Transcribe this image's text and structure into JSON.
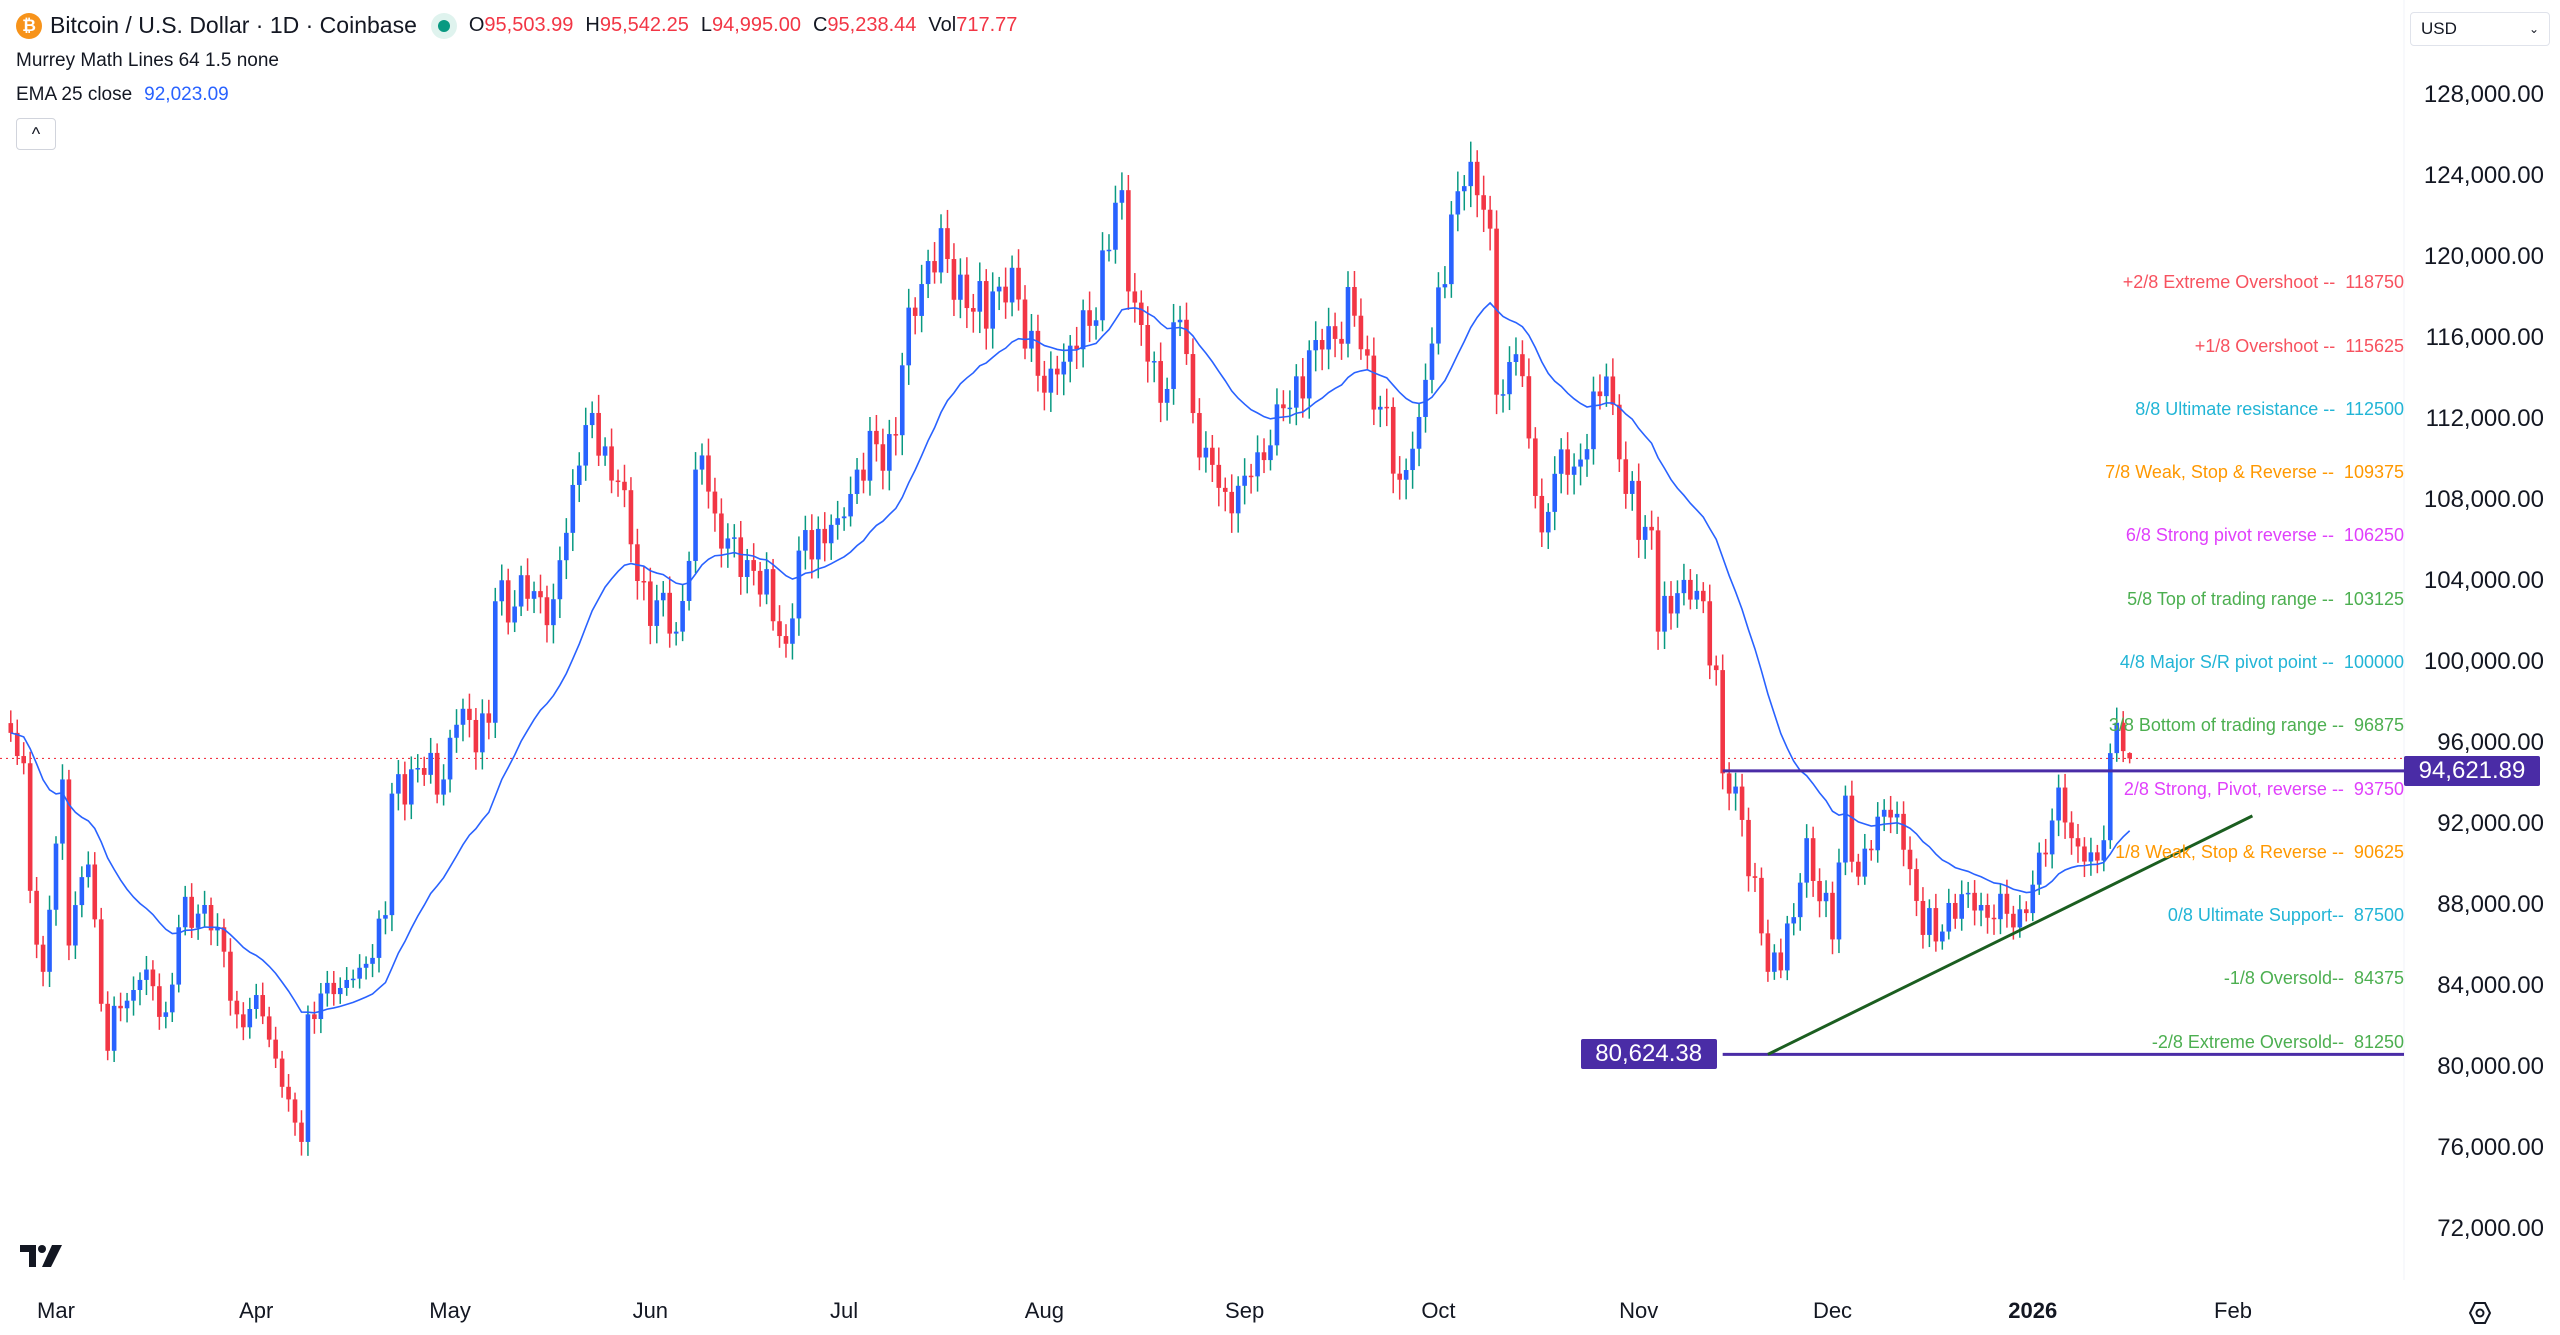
{
  "header": {
    "symbol_icon": "bitcoin-icon",
    "title": "Bitcoin / U.S. Dollar · 1D · Coinbase",
    "market_status": "open",
    "ohlc": [
      {
        "label": "O",
        "value": "95,503.99"
      },
      {
        "label": "H",
        "value": "95,542.25"
      },
      {
        "label": "L",
        "value": "94,995.00"
      },
      {
        "label": "C",
        "value": "95,238.44"
      },
      {
        "label": "Vol",
        "value": "717.77"
      }
    ]
  },
  "indicators": {
    "murrey": "Murrey Math Lines 64 1.5 none",
    "ema_label": "EMA 25 close",
    "ema_value": "92,023.09",
    "collapse_label": "^"
  },
  "currency": {
    "value": "USD"
  },
  "colors": {
    "up": "#2962ff",
    "up_wick": "#089981",
    "down": "#f23645",
    "ema": "#2962ff",
    "level": "#4a2ca6",
    "trendline": "#1b5e20"
  },
  "chart_data": {
    "type": "candlestick",
    "interval": "1D",
    "ylim": [
      72000,
      128000
    ],
    "y_ticks": [
      "128,000.00",
      "124,000.00",
      "120,000.00",
      "116,000.00",
      "112,000.00",
      "108,000.00",
      "104,000.00",
      "100,000.00",
      "96,000.00",
      "92,000.00",
      "88,000.00",
      "84,000.00",
      "80,000.00",
      "76,000.00",
      "72,000.00"
    ],
    "x_ticks": [
      {
        "date": "2025-03-01",
        "label": "Mar"
      },
      {
        "date": "2025-04-01",
        "label": "Apr"
      },
      {
        "date": "2025-05-01",
        "label": "May"
      },
      {
        "date": "2025-06-01",
        "label": "Jun"
      },
      {
        "date": "2025-07-01",
        "label": "Jul"
      },
      {
        "date": "2025-08-01",
        "label": "Aug"
      },
      {
        "date": "2025-09-01",
        "label": "Sep"
      },
      {
        "date": "2025-10-01",
        "label": "Oct"
      },
      {
        "date": "2025-11-01",
        "label": "Nov"
      },
      {
        "date": "2025-12-01",
        "label": "Dec"
      },
      {
        "date": "2026-01-01",
        "label": "2026",
        "bold": true
      },
      {
        "date": "2026-02-01",
        "label": "Feb"
      }
    ],
    "approx_closes": [
      [
        "2025-02-22",
        96500
      ],
      [
        "2025-02-24",
        95000
      ],
      [
        "2025-02-25",
        88700
      ],
      [
        "2025-02-27",
        84700
      ],
      [
        "2025-03-02",
        94200
      ],
      [
        "2025-03-03",
        86000
      ],
      [
        "2025-03-06",
        90000
      ],
      [
        "2025-03-09",
        80800
      ],
      [
        "2025-03-11",
        82900
      ],
      [
        "2025-03-14",
        84300
      ],
      [
        "2025-03-18",
        82700
      ],
      [
        "2025-03-20",
        86900
      ],
      [
        "2025-03-24",
        88000
      ],
      [
        "2025-03-26",
        86900
      ],
      [
        "2025-03-29",
        82600
      ],
      [
        "2025-04-02",
        82500
      ],
      [
        "2025-04-06",
        78400
      ],
      [
        "2025-04-08",
        76300
      ],
      [
        "2025-04-09",
        82600
      ],
      [
        "2025-04-13",
        83600
      ],
      [
        "2025-04-17",
        84900
      ],
      [
        "2025-04-21",
        87500
      ],
      [
        "2025-04-22",
        93500
      ],
      [
        "2025-04-25",
        94700
      ],
      [
        "2025-04-30",
        94200
      ],
      [
        "2025-05-02",
        96900
      ],
      [
        "2025-05-07",
        97000
      ],
      [
        "2025-05-08",
        103000
      ],
      [
        "2025-05-14",
        103500
      ],
      [
        "2025-05-17",
        103100
      ],
      [
        "2025-05-21",
        109700
      ],
      [
        "2025-05-22",
        111700
      ],
      [
        "2025-05-27",
        108900
      ],
      [
        "2025-05-30",
        104000
      ],
      [
        "2025-06-05",
        101500
      ],
      [
        "2025-06-09",
        110200
      ],
      [
        "2025-06-12",
        105600
      ],
      [
        "2025-06-17",
        104500
      ],
      [
        "2025-06-22",
        100900
      ],
      [
        "2025-06-24",
        105500
      ],
      [
        "2025-06-30",
        107100
      ],
      [
        "2025-07-03",
        109500
      ],
      [
        "2025-07-09",
        111200
      ],
      [
        "2025-07-11",
        117500
      ],
      [
        "2025-07-14",
        119800
      ],
      [
        "2025-07-17",
        119900
      ],
      [
        "2025-07-21",
        117300
      ],
      [
        "2025-07-24",
        118300
      ],
      [
        "2025-07-28",
        117900
      ],
      [
        "2025-08-01",
        113300
      ],
      [
        "2025-08-03",
        114200
      ],
      [
        "2025-08-08",
        116600
      ],
      [
        "2025-08-13",
        123300
      ],
      [
        "2025-08-14",
        118300
      ],
      [
        "2025-08-19",
        112800
      ],
      [
        "2025-08-22",
        116900
      ],
      [
        "2025-08-25",
        110100
      ],
      [
        "2025-08-29",
        108400
      ],
      [
        "2025-09-01",
        109200
      ],
      [
        "2025-09-05",
        110700
      ],
      [
        "2025-09-12",
        115900
      ],
      [
        "2025-09-18",
        117100
      ],
      [
        "2025-09-22",
        112600
      ],
      [
        "2025-09-25",
        109000
      ],
      [
        "2025-09-28",
        112100
      ],
      [
        "2025-10-01",
        118500
      ],
      [
        "2025-10-05",
        123500
      ],
      [
        "2025-10-06",
        124700
      ],
      [
        "2025-10-09",
        121400
      ],
      [
        "2025-10-10",
        113200
      ],
      [
        "2025-10-13",
        115200
      ],
      [
        "2025-10-16",
        108200
      ],
      [
        "2025-10-17",
        106400
      ],
      [
        "2025-10-20",
        110500
      ],
      [
        "2025-10-23",
        110000
      ],
      [
        "2025-10-27",
        114100
      ],
      [
        "2025-10-30",
        108300
      ],
      [
        "2025-11-03",
        106500
      ],
      [
        "2025-11-04",
        101500
      ],
      [
        "2025-11-07",
        103400
      ],
      [
        "2025-11-11",
        103000
      ],
      [
        "2025-11-13",
        99600
      ],
      [
        "2025-11-14",
        94500
      ],
      [
        "2025-11-17",
        92200
      ],
      [
        "2025-11-20",
        86600
      ],
      [
        "2025-11-21",
        84700
      ],
      [
        "2025-11-25",
        87400
      ],
      [
        "2025-11-27",
        91300
      ],
      [
        "2025-12-01",
        86300
      ],
      [
        "2025-12-03",
        93400
      ],
      [
        "2025-12-05",
        89400
      ],
      [
        "2025-12-09",
        92700
      ],
      [
        "2025-12-11",
        92500
      ],
      [
        "2025-12-14",
        88200
      ],
      [
        "2025-12-17",
        86200
      ],
      [
        "2025-12-19",
        88100
      ],
      [
        "2025-12-22",
        88600
      ],
      [
        "2025-12-26",
        87300
      ],
      [
        "2025-12-31",
        87600
      ],
      [
        "2026-01-03",
        90500
      ],
      [
        "2026-01-05",
        93800
      ],
      [
        "2026-01-07",
        91300
      ],
      [
        "2026-01-10",
        90600
      ],
      [
        "2026-01-12",
        91200
      ],
      [
        "2026-01-13",
        95500
      ],
      [
        "2026-01-14",
        97000
      ],
      [
        "2026-01-15",
        95600
      ],
      [
        "2026-01-16",
        95238.44
      ]
    ],
    "last_candle": {
      "open": 95503.99,
      "high": 95542.25,
      "low": 94995.0,
      "close": 95238.44
    },
    "ema_period": 25,
    "current_price": 95238.44,
    "horizontal_levels": [
      {
        "price": 94621.89,
        "label": "94,621.89",
        "from": "2025-11-14"
      },
      {
        "price": 80624.38,
        "label": "80,624.38",
        "from": "2025-11-14"
      }
    ],
    "trendline": [
      [
        "2025-11-21",
        80624.38
      ],
      [
        "2026-02-04",
        92400
      ]
    ],
    "murrey_levels": [
      {
        "price": 118750,
        "text": "+2/8 Extreme Overshoot --  118750",
        "color": "#f7525f"
      },
      {
        "price": 115625,
        "text": "+1/8 Overshoot --  115625",
        "color": "#f7525f"
      },
      {
        "price": 112500,
        "text": "8/8 Ultimate resistance --  112500",
        "color": "#22b5d6"
      },
      {
        "price": 109375,
        "text": "7/8 Weak, Stop & Reverse --  109375",
        "color": "#ff9800"
      },
      {
        "price": 106250,
        "text": "6/8 Strong pivot reverse --  106250",
        "color": "#e040fb"
      },
      {
        "price": 103125,
        "text": "5/8 Top of trading range --  103125",
        "color": "#4caf50"
      },
      {
        "price": 100000,
        "text": "4/8 Major S/R pivot point --  100000",
        "color": "#22b5d6"
      },
      {
        "price": 96875,
        "text": "3/8 Bottom of trading range --  96875",
        "color": "#4caf50"
      },
      {
        "price": 93750,
        "text": "2/8 Strong, Pivot, reverse --  93750",
        "color": "#e040fb"
      },
      {
        "price": 90625,
        "text": "1/8 Weak, Stop & Reverse --  90625",
        "color": "#ff9800"
      },
      {
        "price": 87500,
        "text": "0/8 Ultimate Support--  87500",
        "color": "#22b5d6"
      },
      {
        "price": 84375,
        "text": "-1/8 Oversold--  84375",
        "color": "#4caf50"
      },
      {
        "price": 81250,
        "text": "-2/8 Extreme Oversold--  81250",
        "color": "#4caf50"
      }
    ]
  }
}
